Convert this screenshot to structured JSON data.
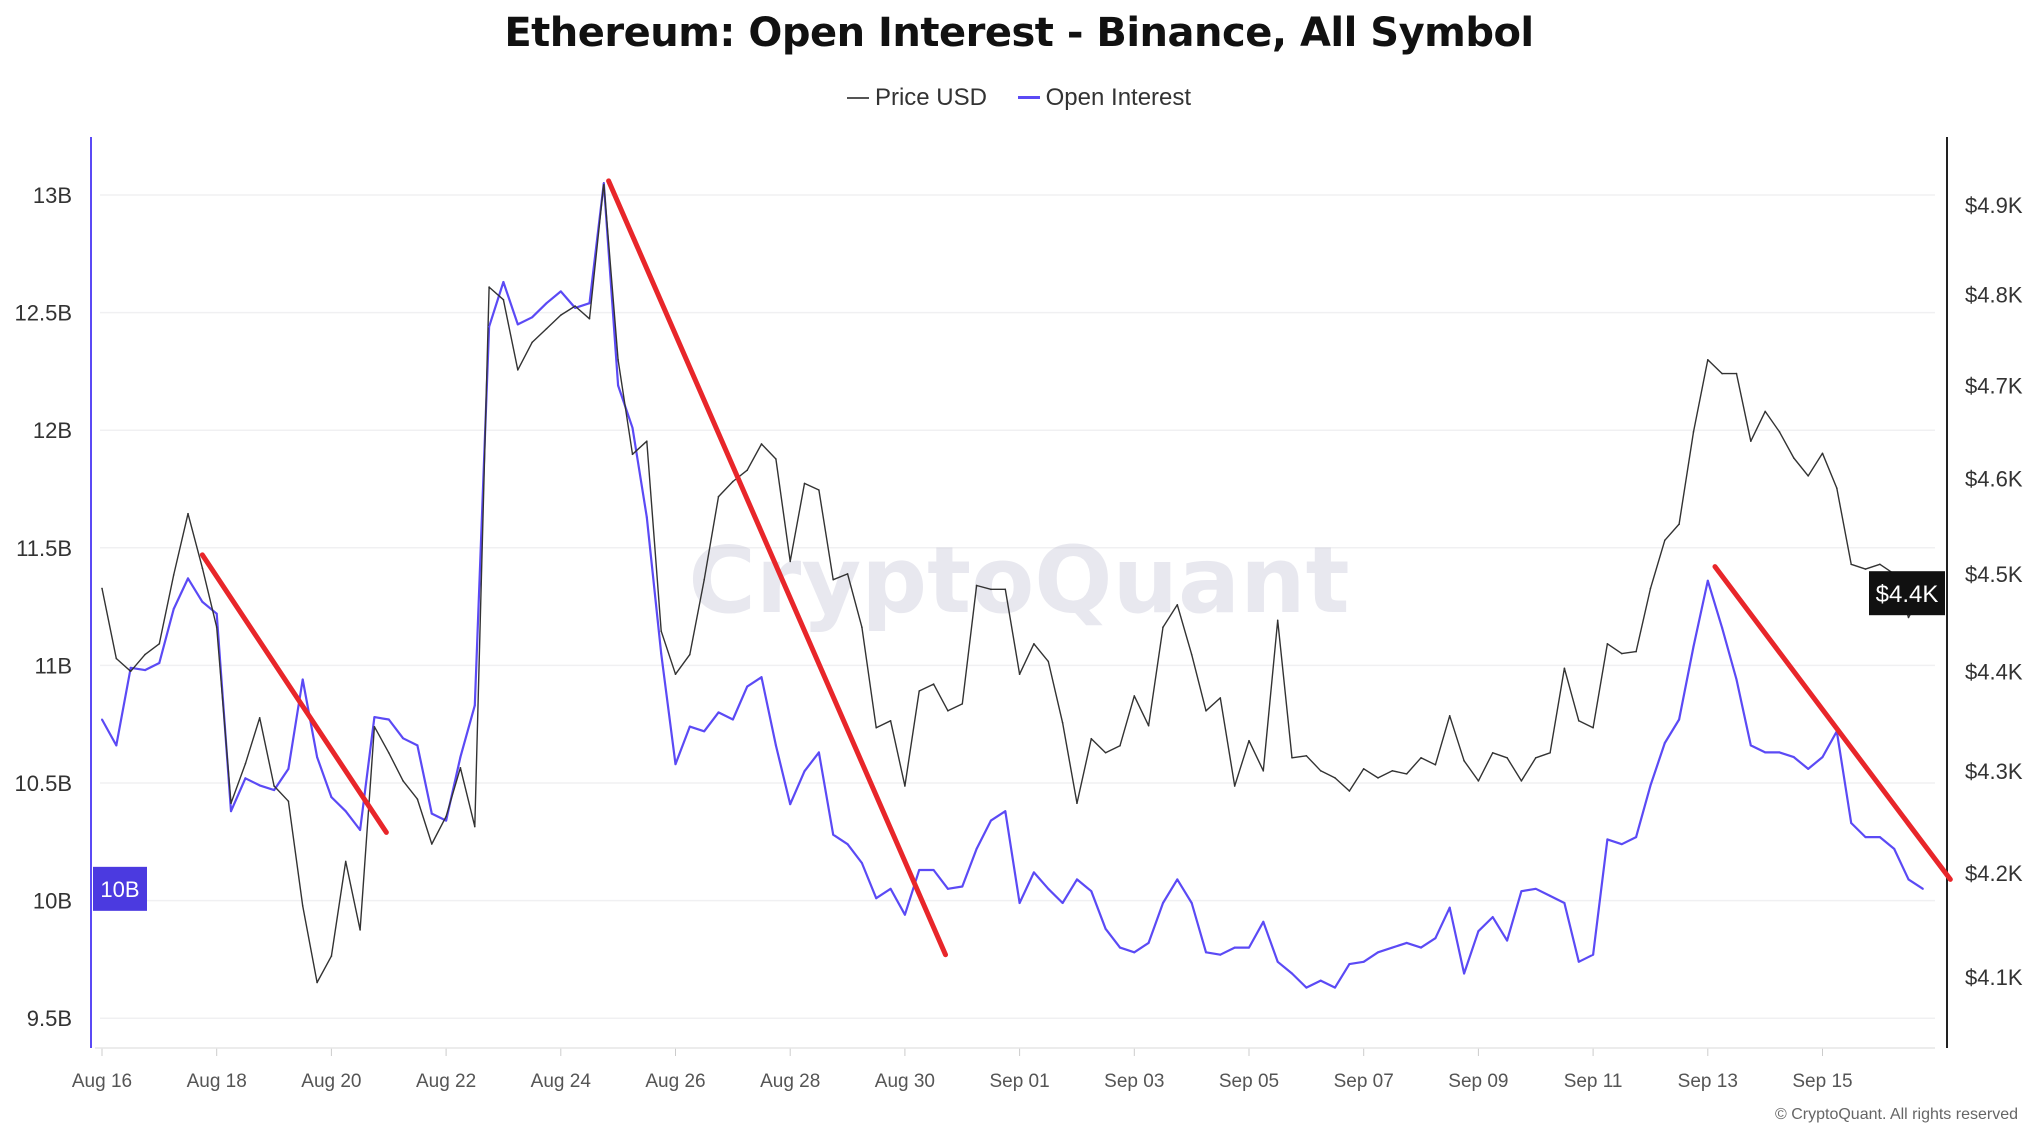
{
  "title": "Ethereum: Open Interest - Binance, All Symbol",
  "copyright": "© CryptoQuant. All rights reserved",
  "watermark": "CryptoQuant",
  "chart_data": {
    "type": "line",
    "title": "Ethereum: Open Interest - Binance, All Symbol",
    "legend_position": "top",
    "grid": true,
    "x_ticks": [
      "Aug 16",
      "Aug 18",
      "Aug 20",
      "Aug 22",
      "Aug 24",
      "Aug 26",
      "Aug 28",
      "Aug 30",
      "Sep 01",
      "Sep 03",
      "Sep 05",
      "Sep 07",
      "Sep 09",
      "Sep 11",
      "Sep 13",
      "Sep 15"
    ],
    "left_axis": {
      "series": "Open Interest",
      "unit": "B",
      "ticks": [
        9.5,
        10,
        10.5,
        11,
        11.5,
        12,
        12.5,
        13
      ],
      "tick_labels": [
        "9.5B",
        "10B",
        "10.5B",
        "11B",
        "11.5B",
        "12B",
        "12.5B",
        "13B"
      ],
      "range": [
        9.4,
        13.2
      ],
      "current_label": "10B"
    },
    "right_axis": {
      "series": "Price USD",
      "scale": "log",
      "ticks": [
        4100,
        4200,
        4300,
        4400,
        4500,
        4600,
        4700,
        4800,
        4900
      ],
      "tick_labels": [
        "$4.1K",
        "$4.2K",
        "$4.3K",
        "$4.4K",
        "$4.5K",
        "$4.6K",
        "$4.7K",
        "$4.8K",
        "$4.9K"
      ],
      "current_label": "$4.4K"
    },
    "series": [
      {
        "name": "Price USD",
        "color": "#333333",
        "axis": "right"
      },
      {
        "name": "Open Interest",
        "color": "#5b4af5",
        "axis": "left"
      }
    ],
    "columns": [
      "time",
      "Price USD",
      "Open Interest"
    ],
    "points": [
      [
        "Aug 16 00:00",
        4485,
        10.77
      ],
      [
        "Aug 16 06:00",
        4413,
        10.66
      ],
      [
        "Aug 16 12:00",
        4400,
        10.99
      ],
      [
        "Aug 16 18:00",
        4417,
        10.98
      ],
      [
        "Aug 17 00:00",
        4428,
        11.01
      ],
      [
        "Aug 17 06:00",
        4499,
        11.24
      ],
      [
        "Aug 17 12:00",
        4563,
        11.37
      ],
      [
        "Aug 17 18:00",
        4506,
        11.27
      ],
      [
        "Aug 18 00:00",
        4445,
        11.22
      ],
      [
        "Aug 18 06:00",
        4268,
        10.38
      ],
      [
        "Aug 18 12:00",
        4307,
        10.52
      ],
      [
        "Aug 18 18:00",
        4353,
        10.49
      ],
      [
        "Aug 19 00:00",
        4285,
        10.47
      ],
      [
        "Aug 19 06:00",
        4270,
        10.56
      ],
      [
        "Aug 19 12:00",
        4168,
        10.94
      ],
      [
        "Aug 19 18:00",
        4095,
        10.61
      ],
      [
        "Aug 20 00:00",
        4120,
        10.44
      ],
      [
        "Aug 20 06:00",
        4211,
        10.38
      ],
      [
        "Aug 20 12:00",
        4145,
        10.3
      ],
      [
        "Aug 20 18:00",
        4344,
        10.78
      ],
      [
        "Aug 21 00:00",
        4318,
        10.77
      ],
      [
        "Aug 21 06:00",
        4290,
        10.69
      ],
      [
        "Aug 21 12:00",
        4272,
        10.66
      ],
      [
        "Aug 21 18:00",
        4228,
        10.37
      ],
      [
        "Aug 22 00:00",
        4255,
        10.34
      ],
      [
        "Aug 22 06:00",
        4303,
        10.61
      ],
      [
        "Aug 22 12:00",
        4245,
        10.83
      ],
      [
        "Aug 22 18:00",
        4808,
        12.44
      ],
      [
        "Aug 23 00:00",
        4794,
        12.63
      ],
      [
        "Aug 23 06:00",
        4717,
        12.45
      ],
      [
        "Aug 23 12:00",
        4747,
        12.48
      ],
      [
        "Aug 23 18:00",
        4762,
        12.54
      ],
      [
        "Aug 24 00:00",
        4777,
        12.59
      ],
      [
        "Aug 24 06:00",
        4787,
        12.52
      ],
      [
        "Aug 24 12:00",
        4773,
        12.54
      ],
      [
        "Aug 24 18:00",
        4925,
        13.05
      ],
      [
        "Aug 25 00:00",
        4728,
        12.19
      ],
      [
        "Aug 25 06:00",
        4626,
        12.01
      ],
      [
        "Aug 25 12:00",
        4640,
        11.63
      ],
      [
        "Aug 25 18:00",
        4441,
        11.05
      ],
      [
        "Aug 26 00:00",
        4397,
        10.58
      ],
      [
        "Aug 26 06:00",
        4417,
        10.74
      ],
      [
        "Aug 26 12:00",
        4494,
        10.72
      ],
      [
        "Aug 26 18:00",
        4581,
        10.8
      ],
      [
        "Aug 27 00:00",
        4597,
        10.77
      ],
      [
        "Aug 27 06:00",
        4609,
        10.91
      ],
      [
        "Aug 27 12:00",
        4637,
        10.95
      ],
      [
        "Aug 27 18:00",
        4621,
        10.66
      ],
      [
        "Aug 28 00:00",
        4513,
        10.41
      ],
      [
        "Aug 28 06:00",
        4595,
        10.55
      ],
      [
        "Aug 28 12:00",
        4588,
        10.63
      ],
      [
        "Aug 28 18:00",
        4494,
        10.28
      ],
      [
        "Aug 29 00:00",
        4500,
        10.24
      ],
      [
        "Aug 29 06:00",
        4445,
        10.16
      ],
      [
        "Aug 29 12:00",
        4343,
        10.01
      ],
      [
        "Aug 29 18:00",
        4350,
        10.05
      ],
      [
        "Aug 30 00:00",
        4285,
        9.94
      ],
      [
        "Aug 30 06:00",
        4380,
        10.13
      ],
      [
        "Aug 30 12:00",
        4387,
        10.13
      ],
      [
        "Aug 30 18:00",
        4360,
        10.05
      ],
      [
        "Aug 31 00:00",
        4367,
        10.06
      ],
      [
        "Aug 31 06:00",
        4488,
        10.22
      ],
      [
        "Aug 31 12:00",
        4484,
        10.34
      ],
      [
        "Aug 31 18:00",
        4484,
        10.38
      ],
      [
        "Sep 01 00:00",
        4397,
        9.99
      ],
      [
        "Sep 01 06:00",
        4428,
        10.12
      ],
      [
        "Sep 01 12:00",
        4410,
        10.05
      ],
      [
        "Sep 01 18:00",
        4348,
        9.99
      ],
      [
        "Sep 02 00:00",
        4268,
        10.09
      ],
      [
        "Sep 02 06:00",
        4332,
        10.04
      ],
      [
        "Sep 02 12:00",
        4318,
        9.88
      ],
      [
        "Sep 02 18:00",
        4325,
        9.8
      ],
      [
        "Sep 03 00:00",
        4375,
        9.78
      ],
      [
        "Sep 03 06:00",
        4345,
        9.82
      ],
      [
        "Sep 03 12:00",
        4445,
        9.99
      ],
      [
        "Sep 03 18:00",
        4468,
        10.09
      ],
      [
        "Sep 04 00:00",
        4417,
        9.99
      ],
      [
        "Sep 04 06:00",
        4360,
        9.78
      ],
      [
        "Sep 04 12:00",
        4373,
        9.77
      ],
      [
        "Sep 04 18:00",
        4285,
        9.8
      ],
      [
        "Sep 05 00:00",
        4330,
        9.8
      ],
      [
        "Sep 05 06:00",
        4300,
        9.91
      ],
      [
        "Sep 05 12:00",
        4452,
        9.74
      ],
      [
        "Sep 05 18:00",
        4313,
        9.69
      ],
      [
        "Sep 06 00:00",
        4315,
        9.63
      ],
      [
        "Sep 06 06:00",
        4300,
        9.66
      ],
      [
        "Sep 06 12:00",
        4293,
        9.63
      ],
      [
        "Sep 06 18:00",
        4280,
        9.73
      ],
      [
        "Sep 07 00:00",
        4302,
        9.74
      ],
      [
        "Sep 07 06:00",
        4293,
        9.78
      ],
      [
        "Sep 07 12:00",
        4300,
        9.8
      ],
      [
        "Sep 07 18:00",
        4297,
        9.82
      ],
      [
        "Sep 08 00:00",
        4313,
        9.8
      ],
      [
        "Sep 08 06:00",
        4306,
        9.84
      ],
      [
        "Sep 08 12:00",
        4355,
        9.97
      ],
      [
        "Sep 08 18:00",
        4310,
        9.69
      ],
      [
        "Sep 09 00:00",
        4290,
        9.87
      ],
      [
        "Sep 09 06:00",
        4318,
        9.93
      ],
      [
        "Sep 09 12:00",
        4313,
        9.83
      ],
      [
        "Sep 09 18:00",
        4290,
        10.04
      ],
      [
        "Sep 10 00:00",
        4313,
        10.05
      ],
      [
        "Sep 10 06:00",
        4318,
        10.02
      ],
      [
        "Sep 10 12:00",
        4403,
        9.99
      ],
      [
        "Sep 10 18:00",
        4350,
        9.74
      ],
      [
        "Sep 11 00:00",
        4343,
        9.77
      ],
      [
        "Sep 11 06:00",
        4428,
        10.26
      ],
      [
        "Sep 11 12:00",
        4418,
        10.24
      ],
      [
        "Sep 11 18:00",
        4420,
        10.27
      ],
      [
        "Sep 12 00:00",
        4485,
        10.49
      ],
      [
        "Sep 12 06:00",
        4535,
        10.67
      ],
      [
        "Sep 12 12:00",
        4552,
        10.77
      ],
      [
        "Sep 12 18:00",
        4650,
        11.08
      ],
      [
        "Sep 13 00:00",
        4728,
        11.36
      ],
      [
        "Sep 13 06:00",
        4713,
        11.16
      ],
      [
        "Sep 13 12:00",
        4713,
        10.94
      ],
      [
        "Sep 13 18:00",
        4640,
        10.66
      ],
      [
        "Sep 14 00:00",
        4672,
        10.63
      ],
      [
        "Sep 14 06:00",
        4650,
        10.63
      ],
      [
        "Sep 14 12:00",
        4622,
        10.61
      ],
      [
        "Sep 14 18:00",
        4603,
        10.56
      ],
      [
        "Sep 15 00:00",
        4627,
        10.61
      ],
      [
        "Sep 15 06:00",
        4590,
        10.72
      ],
      [
        "Sep 15 12:00",
        4510,
        10.33
      ],
      [
        "Sep 15 18:00",
        4505,
        10.27
      ],
      [
        "Sep 16 00:00",
        4510,
        10.27
      ],
      [
        "Sep 16 06:00",
        4500,
        10.22
      ],
      [
        "Sep 16 12:00",
        4455,
        10.09
      ],
      [
        "Sep 16 18:00",
        4480,
        10.05
      ]
    ],
    "annotations": [
      {
        "type": "trend-line",
        "color": "#e8262a",
        "from": [
          "Aug 17 18:00",
          11.47
        ],
        "to": [
          "Aug 20 23:00",
          10.29
        ]
      },
      {
        "type": "trend-line",
        "color": "#e8262a",
        "from": [
          "Aug 24 20:00",
          13.06
        ],
        "to": [
          "Aug 30 17:00",
          9.77
        ]
      },
      {
        "type": "trend-line",
        "color": "#e8262a",
        "from": [
          "Sep 13 03:00",
          11.42
        ],
        "to": [
          "Sep 17 05:30",
          10.09
        ]
      }
    ]
  }
}
